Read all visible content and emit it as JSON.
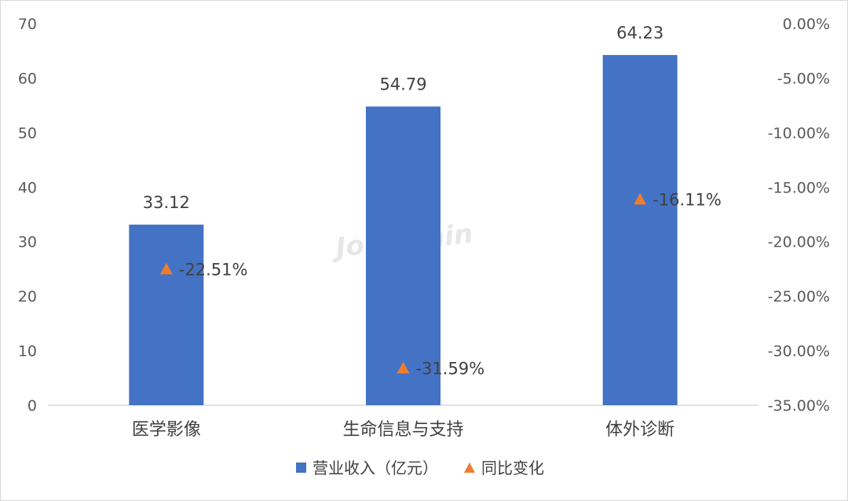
{
  "chart_data": {
    "type": "bar",
    "categories": [
      "医学影像",
      "生命信息与支持",
      "体外诊断"
    ],
    "series": [
      {
        "name": "营业收入（亿元）",
        "type": "bar",
        "axis": "left",
        "color": "#4472C4",
        "values": [
          33.12,
          54.79,
          64.23
        ],
        "labels": [
          "33.12",
          "54.79",
          "64.23"
        ]
      },
      {
        "name": "同比变化",
        "type": "scatter",
        "marker": "triangle",
        "axis": "right",
        "color": "#ED7D31",
        "values": [
          -22.51,
          -31.59,
          -16.11
        ],
        "labels": [
          "-22.51%",
          "-31.59%",
          "-16.11%"
        ]
      }
    ],
    "y_left": {
      "ylim": [
        0,
        70
      ],
      "ticks": [
        "0",
        "10",
        "20",
        "30",
        "40",
        "50",
        "60",
        "70"
      ]
    },
    "y_right": {
      "ylim": [
        -35,
        0
      ],
      "ticks": [
        "0.00%",
        "-5.00%",
        "-10.00%",
        "-15.00%",
        "-20.00%",
        "-25.00%",
        "-30.00%",
        "-35.00%"
      ]
    },
    "legend": {
      "position": "bottom",
      "bar_label": "营业收入（亿元）",
      "point_label": "同比变化"
    },
    "watermark": "Joinchain",
    "grid": false
  }
}
